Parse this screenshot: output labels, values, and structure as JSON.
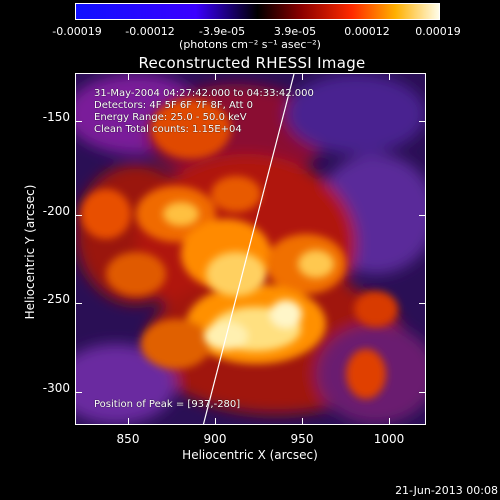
{
  "colorbar": {
    "ticks": [
      "-0.00019",
      "-0.00012",
      "-3.9e-05",
      "3.9e-05",
      "0.00012",
      "0.00019"
    ],
    "units": "(photons cm⁻² s⁻¹ asec⁻²)"
  },
  "title": "Reconstructed RHESSI Image",
  "annotations": {
    "time": "31-May-2004 04:27:42.000 to 04:33:42.000",
    "detectors": "Detectors: 4F 5F 6F 7F 8F, Att 0",
    "energy": "Energy Range: 25.0 - 50.0 keV",
    "method": "Clean     Total counts: 1.15E+04",
    "peak": "Position of Peak = [937,-280]"
  },
  "axes": {
    "xlabel": "Heliocentric X (arcsec)",
    "ylabel": "Heliocentric Y (arcsec)",
    "xticks": [
      "850",
      "900",
      "950",
      "1000"
    ],
    "yticks": [
      "-150",
      "-200",
      "-250",
      "-300"
    ]
  },
  "footer_date": "21-Jun-2013 00:08",
  "colors": {
    "bg": "#000000",
    "frame": "#ffffff"
  }
}
